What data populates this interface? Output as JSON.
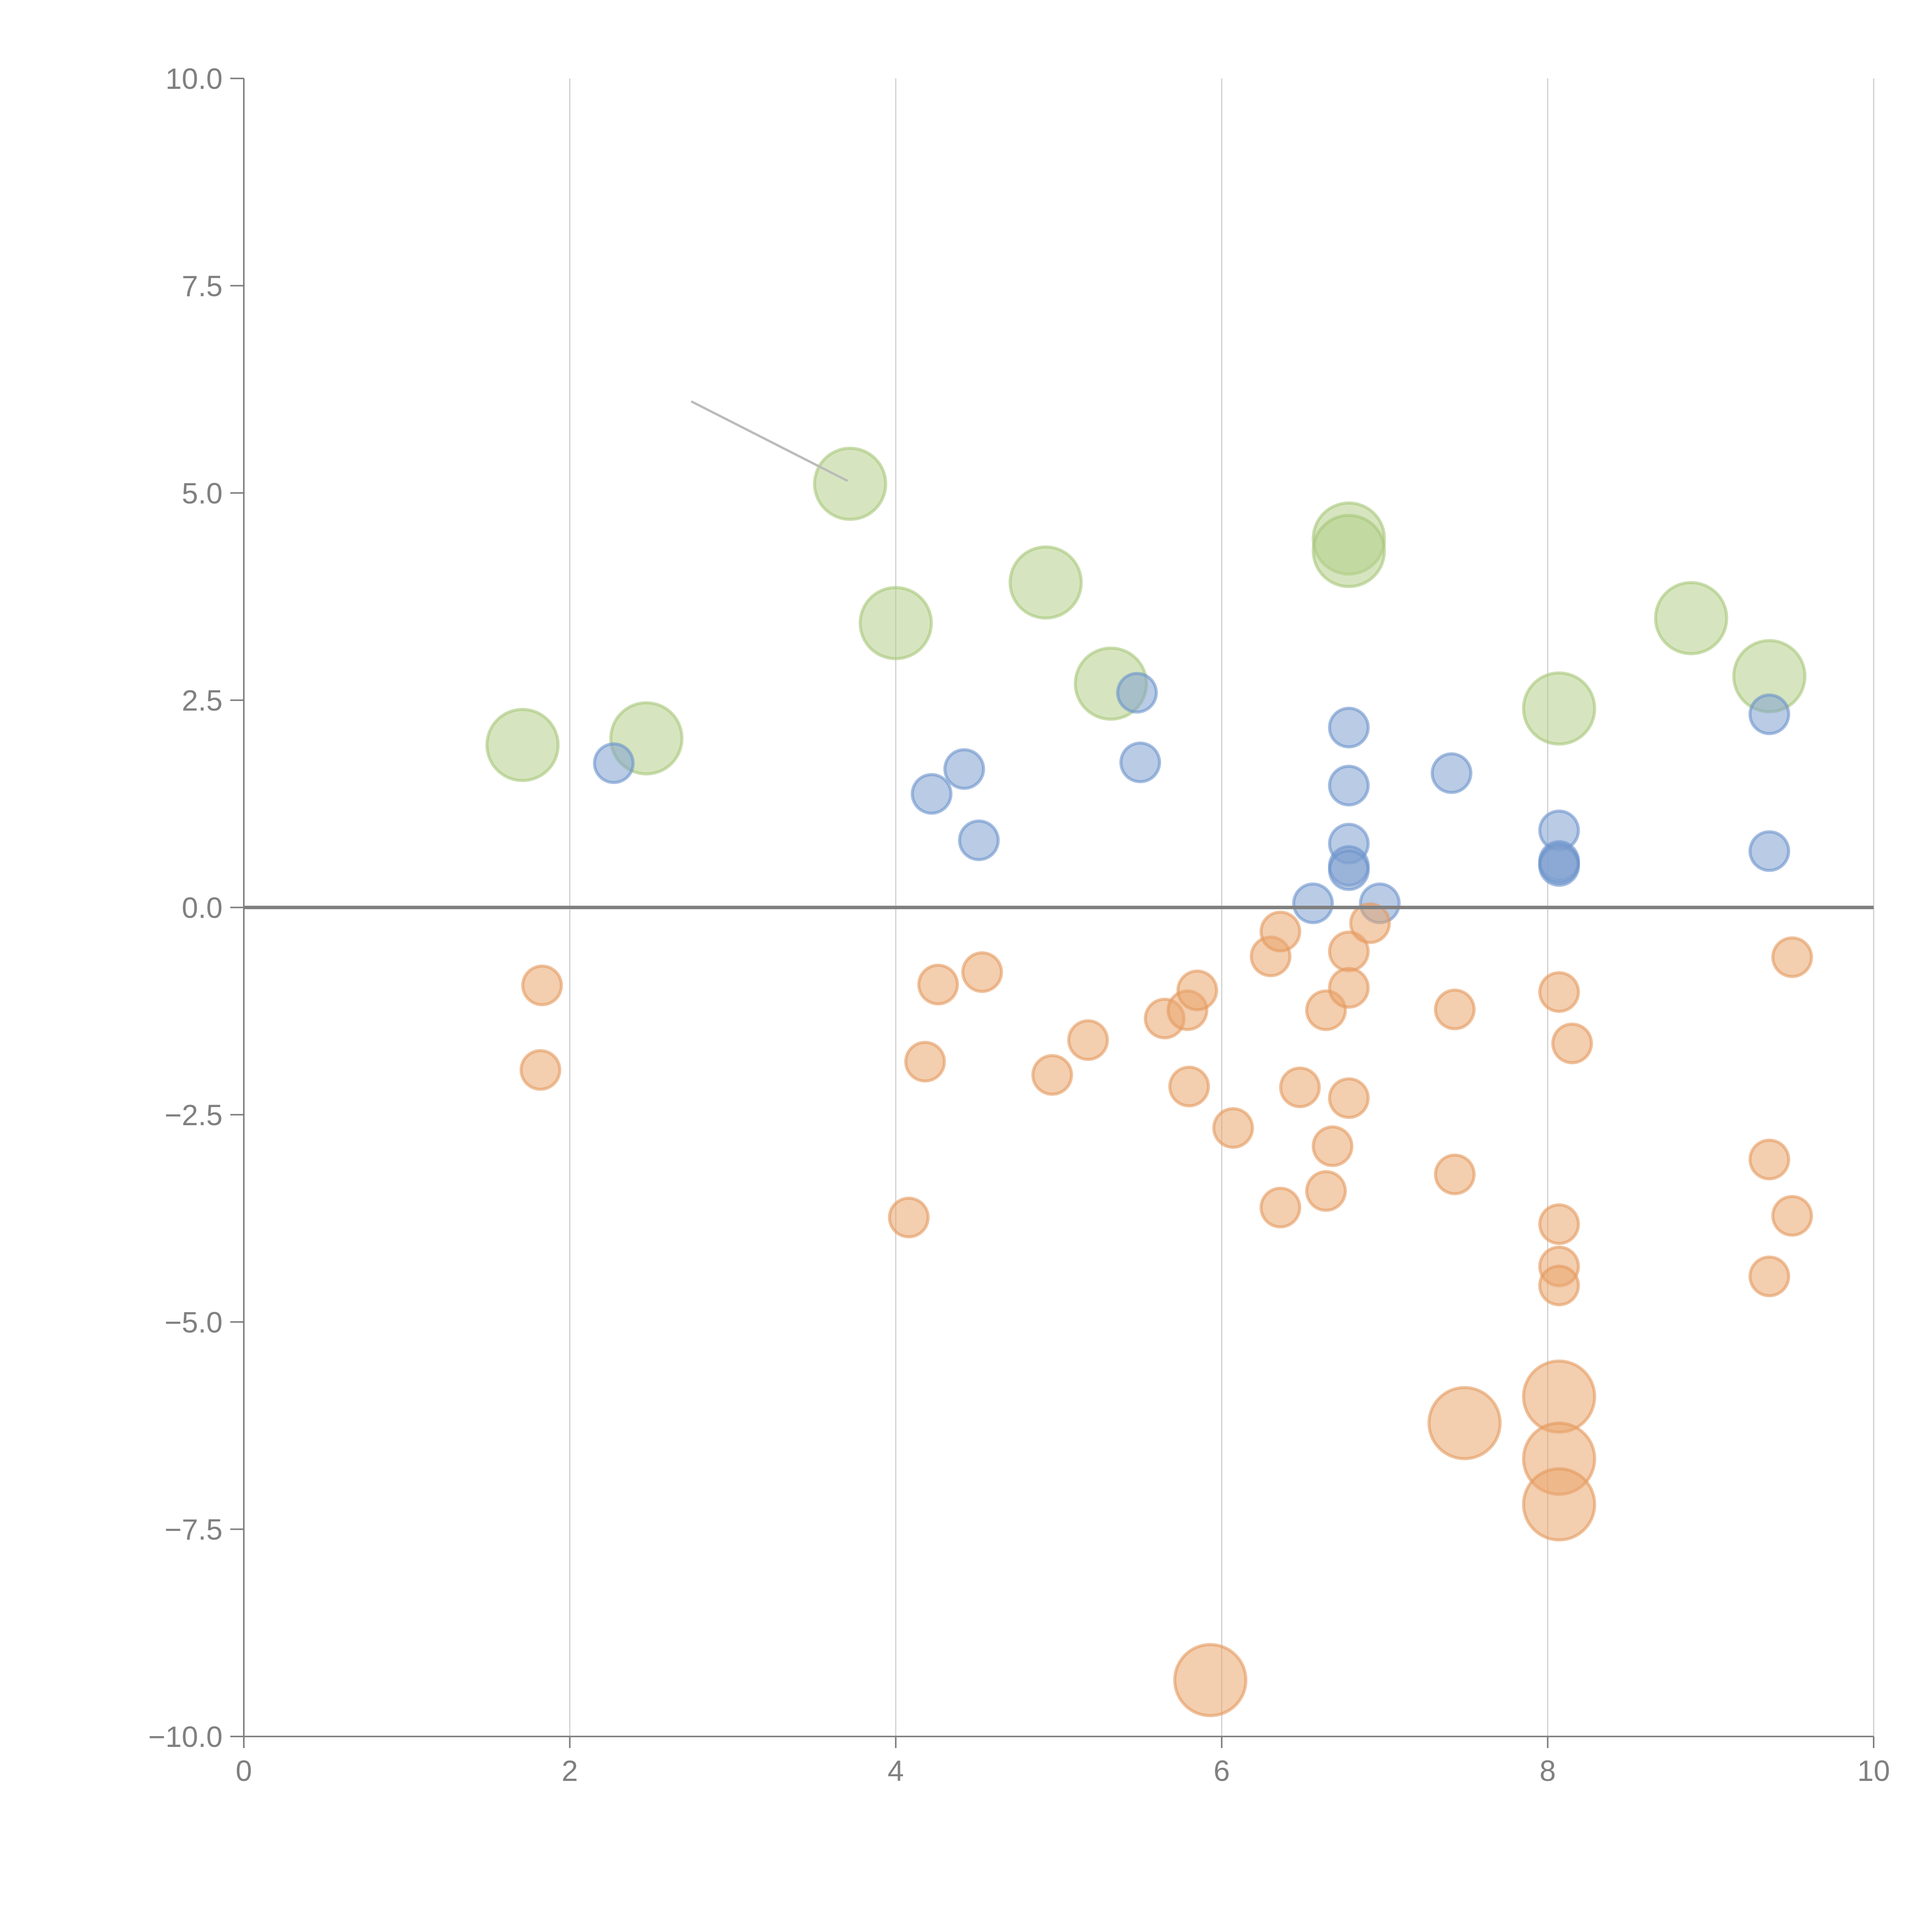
{
  "chart_data": {
    "type": "scatter",
    "title": "",
    "xlabel": "",
    "ylabel": "",
    "xlim": [
      0,
      10
    ],
    "ylim": [
      -10,
      10
    ],
    "x_ticks": [
      "0",
      "2",
      "4",
      "6",
      "8",
      "10"
    ],
    "x_tick_values": [
      0,
      2,
      4,
      6,
      8,
      10
    ],
    "y_ticks": [
      "10.0",
      "7.5",
      "5.0",
      "2.5",
      "0.0",
      "−2.5",
      "−5.0",
      "−7.5",
      "−10.0"
    ],
    "y_tick_values": [
      10,
      7.5,
      5,
      2.5,
      0,
      -2.5,
      -5,
      -7.5,
      -10
    ],
    "grid": "vertical",
    "zero_line": true,
    "legend": "none",
    "annotation_line": {
      "from": [
        2.75,
        6.1
      ],
      "to": [
        3.7,
        5.15
      ]
    },
    "series": [
      {
        "name": "green",
        "color": "#b5d08a",
        "stroke": "#a6c77a",
        "size": "large",
        "points": [
          [
            1.71,
            1.96
          ],
          [
            2.47,
            2.04
          ],
          [
            3.72,
            5.11
          ],
          [
            4.0,
            3.43
          ],
          [
            4.92,
            3.92
          ],
          [
            5.32,
            2.7
          ],
          [
            6.78,
            4.45
          ],
          [
            6.78,
            4.3
          ],
          [
            8.07,
            2.4
          ],
          [
            8.88,
            3.49
          ],
          [
            9.36,
            2.79
          ]
        ]
      },
      {
        "name": "blue",
        "color": "#7fa0d0",
        "stroke": "#6a92cc",
        "size": "small",
        "points": [
          [
            2.27,
            1.74
          ],
          [
            4.22,
            1.37
          ],
          [
            4.42,
            1.67
          ],
          [
            4.51,
            0.81
          ],
          [
            5.48,
            2.59
          ],
          [
            5.5,
            1.75
          ],
          [
            6.56,
            0.05
          ],
          [
            6.78,
            2.17
          ],
          [
            6.78,
            1.47
          ],
          [
            6.78,
            0.77
          ],
          [
            6.78,
            0.5
          ],
          [
            6.78,
            0.45
          ],
          [
            6.97,
            0.05
          ],
          [
            7.41,
            1.62
          ],
          [
            8.07,
            0.93
          ],
          [
            8.07,
            0.56
          ],
          [
            8.07,
            0.5
          ],
          [
            8.07,
            0.53
          ],
          [
            9.36,
            2.33
          ],
          [
            9.36,
            0.68
          ]
        ]
      },
      {
        "name": "orange",
        "color": "#e9a66e",
        "stroke": "#e59a5e",
        "size": "mixed",
        "points": [
          [
            1.83,
            -0.94,
            "s"
          ],
          [
            1.82,
            -1.96,
            "s"
          ],
          [
            4.08,
            -3.74,
            "s"
          ],
          [
            4.18,
            -1.86,
            "s"
          ],
          [
            4.26,
            -0.93,
            "s"
          ],
          [
            4.53,
            -0.78,
            "s"
          ],
          [
            4.96,
            -2.02,
            "s"
          ],
          [
            5.18,
            -1.6,
            "s"
          ],
          [
            5.65,
            -1.34,
            "s"
          ],
          [
            5.79,
            -1.24,
            "s"
          ],
          [
            5.8,
            -2.16,
            "s"
          ],
          [
            5.85,
            -1.0,
            "s"
          ],
          [
            6.07,
            -2.66,
            "s"
          ],
          [
            6.3,
            -0.59,
            "s"
          ],
          [
            6.36,
            -0.29,
            "s"
          ],
          [
            6.36,
            -3.62,
            "s"
          ],
          [
            6.48,
            -2.17,
            "s"
          ],
          [
            6.64,
            -1.24,
            "s"
          ],
          [
            6.64,
            -3.42,
            "s"
          ],
          [
            6.68,
            -2.88,
            "s"
          ],
          [
            6.78,
            -0.53,
            "s"
          ],
          [
            6.78,
            -0.97,
            "s"
          ],
          [
            6.78,
            -2.3,
            "s"
          ],
          [
            6.91,
            -0.19,
            "s"
          ],
          [
            7.43,
            -1.23,
            "s"
          ],
          [
            7.43,
            -3.22,
            "s"
          ],
          [
            8.07,
            -1.02,
            "s"
          ],
          [
            8.15,
            -1.64,
            "s"
          ],
          [
            8.07,
            -3.82,
            "s"
          ],
          [
            8.07,
            -4.33,
            "s"
          ],
          [
            8.07,
            -4.56,
            "s"
          ],
          [
            9.36,
            -3.04,
            "s"
          ],
          [
            9.36,
            -4.45,
            "s"
          ],
          [
            9.5,
            -0.6,
            "s"
          ],
          [
            9.5,
            -3.72,
            "s"
          ],
          [
            5.93,
            -9.32,
            "l"
          ],
          [
            7.49,
            -6.22,
            "l"
          ],
          [
            8.07,
            -5.9,
            "l"
          ],
          [
            8.07,
            -6.65,
            "l"
          ],
          [
            8.07,
            -7.2,
            "l"
          ]
        ]
      }
    ]
  }
}
